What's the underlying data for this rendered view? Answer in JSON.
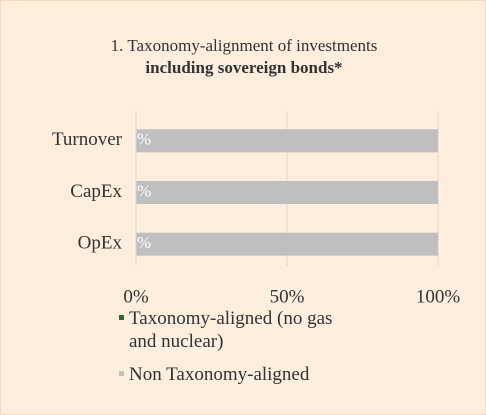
{
  "chart_data": {
    "type": "stacked-bar-horizontal",
    "title": "1. Taxonomy-alignment of investments",
    "subtitle": "including sovereign bonds*",
    "categories": [
      "Turnover",
      "CapEx",
      "OpEx"
    ],
    "series": [
      {
        "name": "Taxonomy-aligned (no gas and nuclear)",
        "color": "#2e6b30",
        "values": [
          0,
          0,
          0
        ],
        "value_labels": [
          "%",
          "%",
          "%"
        ]
      },
      {
        "name": "Non Taxonomy-aligned",
        "color": "#bfbfbf",
        "values": [
          100,
          100,
          100
        ]
      }
    ],
    "xlim": [
      0,
      100
    ],
    "xticks": [
      {
        "value": 0,
        "label": "0%"
      },
      {
        "value": 50,
        "label": "50%"
      },
      {
        "value": 100,
        "label": "100%"
      }
    ],
    "grid": true
  }
}
